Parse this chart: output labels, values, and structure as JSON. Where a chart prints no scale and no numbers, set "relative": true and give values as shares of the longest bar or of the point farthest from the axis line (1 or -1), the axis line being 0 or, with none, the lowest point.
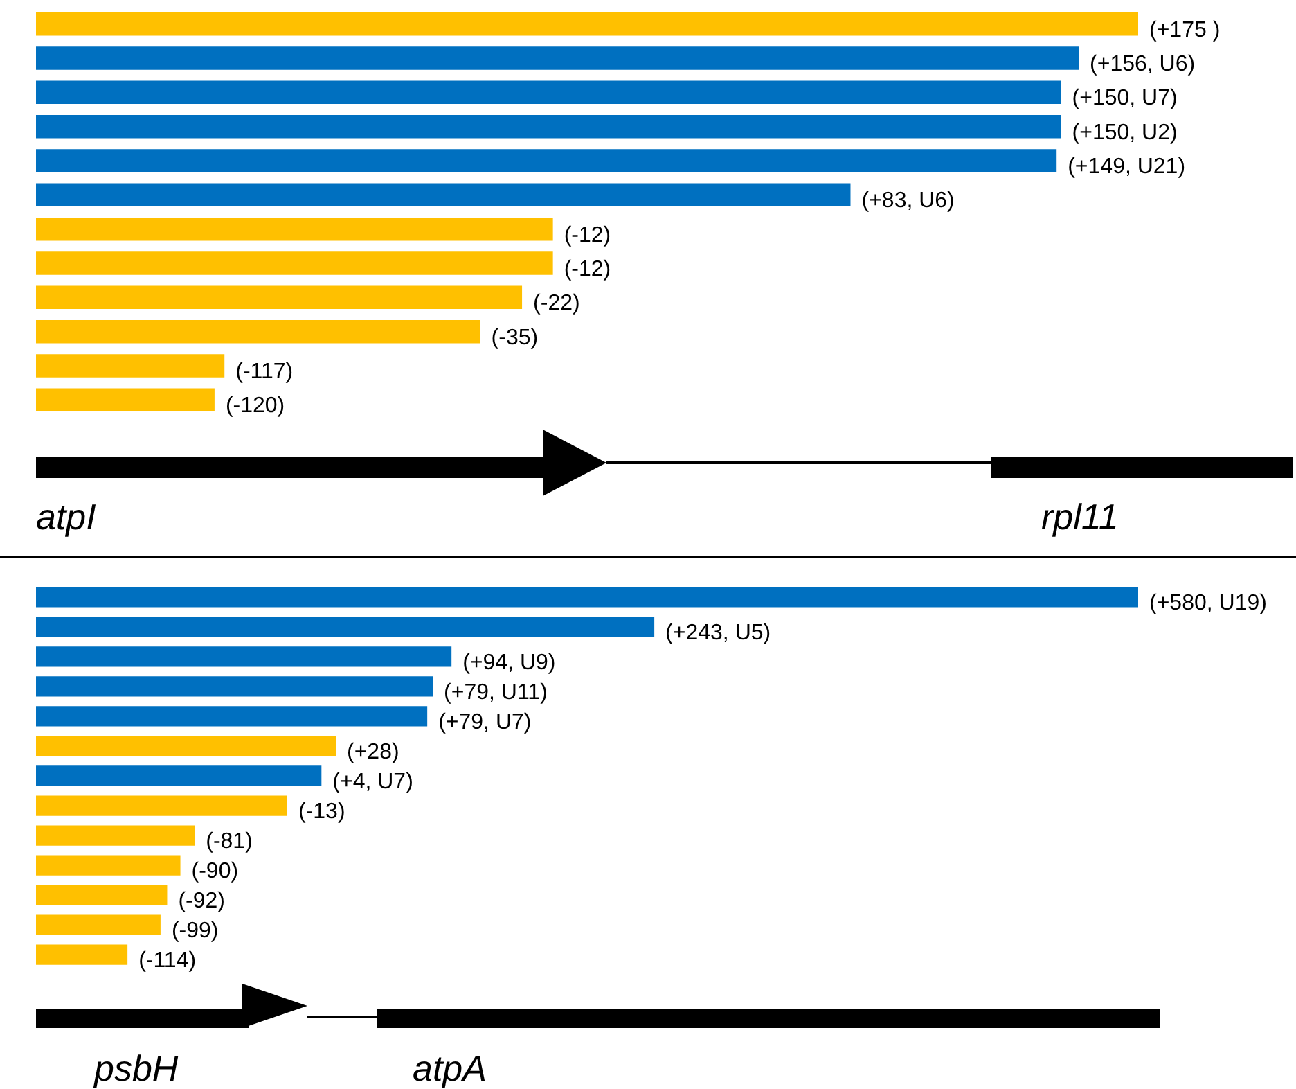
{
  "chart_data": [
    {
      "type": "bar",
      "orientation": "horizontal",
      "relative": true,
      "categories": [
        null,
        null,
        null,
        null,
        null,
        null,
        null,
        null,
        null,
        null,
        null,
        null
      ],
      "values": [
        1,
        0.946,
        0.93,
        0.93,
        0.926,
        0.739,
        0.469,
        0.469,
        0.441,
        0.403,
        0.171,
        0.162
      ],
      "colors": [
        "#ffc000",
        "#0070c0",
        "#0070c0",
        "#0070c0",
        "#0070c0",
        "#0070c0",
        "#ffc000",
        "#ffc000",
        "#ffc000",
        "#ffc000",
        "#ffc000",
        "#ffc000"
      ],
      "annotations": [
        "atpI",
        "rpl11",
        {
          "text": "(+175 )",
          "x": 1
        },
        {
          "text": "(+156, U6)",
          "x": 0.946
        },
        {
          "text": "(+150, U7)",
          "x": 0.93
        },
        {
          "text": "(+150, U2)",
          "x": 0.93
        },
        {
          "text": "(+149, U21)",
          "x": 0.926
        },
        {
          "text": "(+83, U6)",
          "x": 0.739
        },
        {
          "text": "(-12)",
          "x": 0.469
        },
        {
          "text": "(-12)",
          "x": 0.469
        },
        {
          "text": "(-22)",
          "x": 0.441
        },
        {
          "text": "(-35)",
          "x": 0.403
        },
        {
          "text": "(-117)",
          "x": 0.171
        },
        {
          "text": "(-120)",
          "x": 0.162
        }
      ]
    },
    {
      "type": "bar",
      "orientation": "horizontal",
      "relative": true,
      "categories": [
        null,
        null,
        null,
        null,
        null,
        null,
        null,
        null,
        null,
        null,
        null,
        null,
        null
      ],
      "values": [
        1,
        0.561,
        0.377,
        0.36,
        0.355,
        0.272,
        0.259,
        0.228,
        0.144,
        0.131,
        0.119,
        0.113,
        0.083
      ],
      "colors": [
        "#0070c0",
        "#0070c0",
        "#0070c0",
        "#0070c0",
        "#0070c0",
        "#ffc000",
        "#0070c0",
        "#ffc000",
        "#ffc000",
        "#ffc000",
        "#ffc000",
        "#ffc000",
        "#ffc000"
      ],
      "annotations": [
        "psbH",
        "atpA",
        {
          "text": "(+580, U19)",
          "x": 1
        },
        {
          "text": "(+243, U5)",
          "x": 0.561
        },
        {
          "text": "(+94, U9)",
          "x": 0.377
        },
        {
          "text": "(+79, U11)",
          "x": 0.36
        },
        {
          "text": "(+79, U7)",
          "x": 0.355
        },
        {
          "text": "(+28)",
          "x": 0.272
        },
        {
          "text": "(+4, U7)",
          "x": 0.259
        },
        {
          "text": "(-13)",
          "x": 0.228
        },
        {
          "text": "(-81)",
          "x": 0.144
        },
        {
          "text": "(-90)",
          "x": 0.131
        },
        {
          "text": "(-92)",
          "x": 0.119
        },
        {
          "text": "(-99)",
          "x": 0.113
        },
        {
          "text": "(-114)",
          "x": 0.083
        }
      ]
    }
  ]
}
